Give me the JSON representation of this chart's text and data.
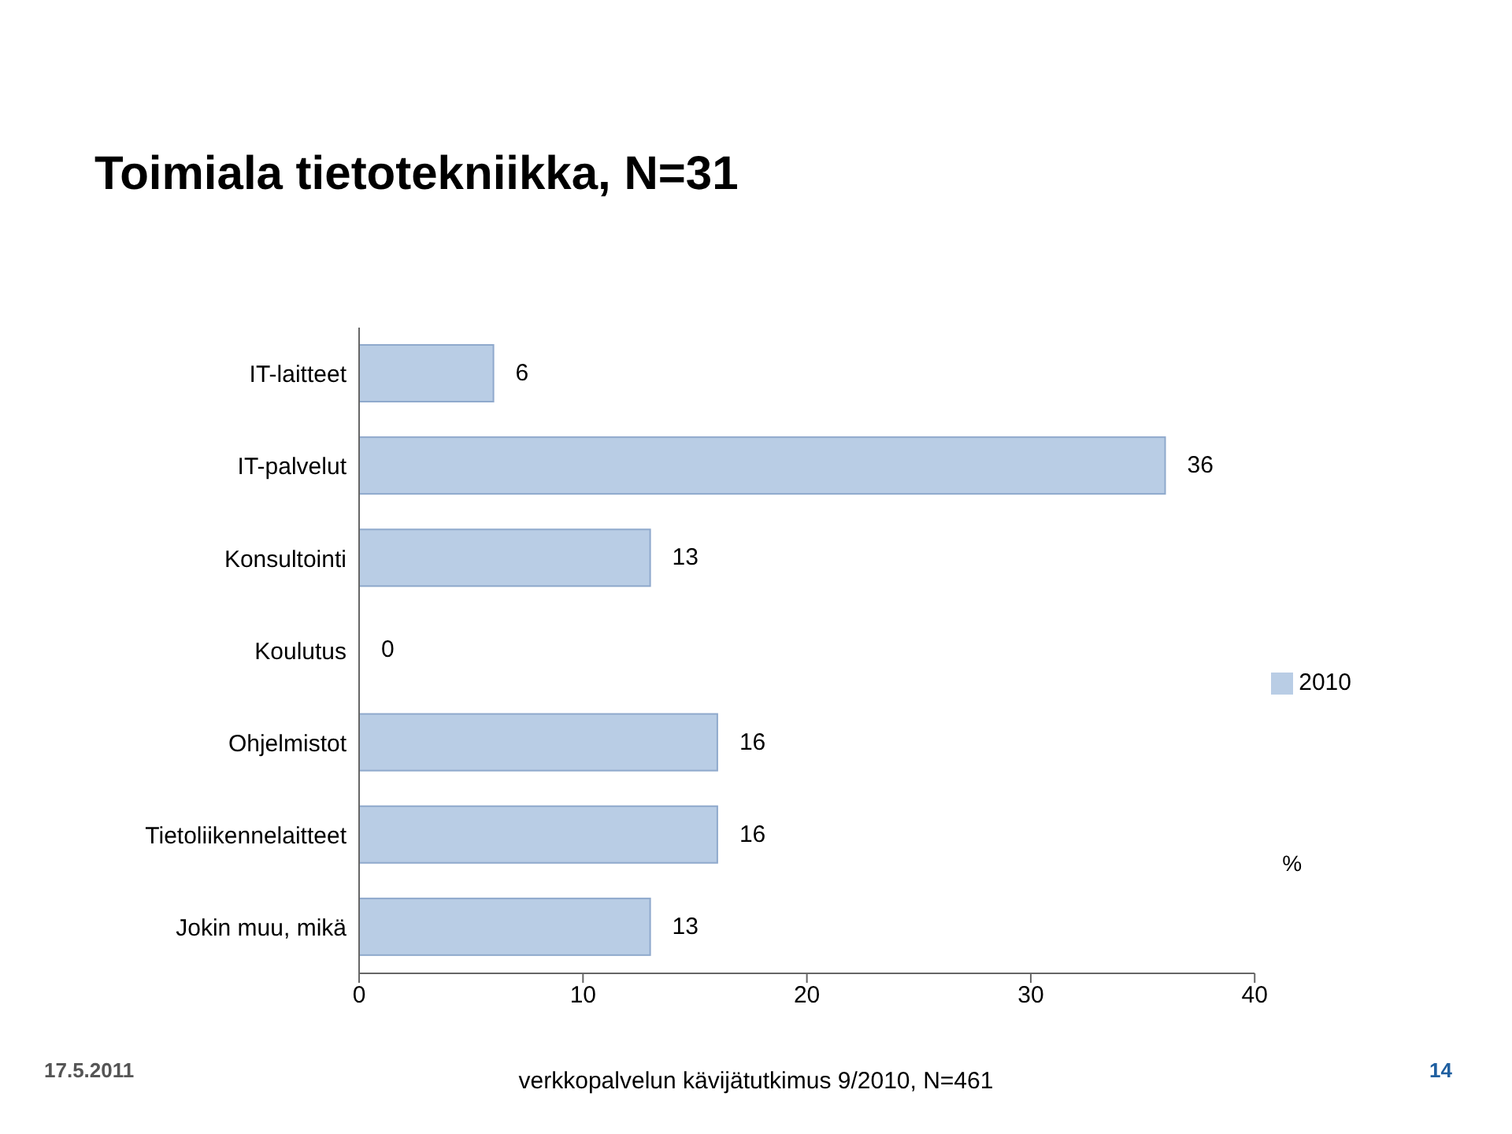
{
  "chart_data": {
    "type": "bar",
    "orientation": "horizontal",
    "title": "Toimiala tietotekniikka, N=31",
    "categories": [
      "IT-laitteet",
      "IT-palvelut",
      "Konsultointi",
      "Koulutus",
      "Ohjelmistot",
      "Tietoliikennelaitteet",
      "Jokin muu, mikä"
    ],
    "series": [
      {
        "name": "2010",
        "color": "#b9cde5",
        "values": [
          6,
          36,
          13,
          0,
          16,
          16,
          13
        ]
      }
    ],
    "xlim": [
      0,
      40
    ],
    "xticks": [
      0,
      10,
      20,
      30,
      40
    ],
    "xlabel": "%",
    "data_labels": true,
    "legend": "right",
    "grid": false,
    "annotations": [
      "17.5.2011",
      "verkkopalvelun kävijätutkimus 9/2010, N=461",
      "14"
    ]
  }
}
